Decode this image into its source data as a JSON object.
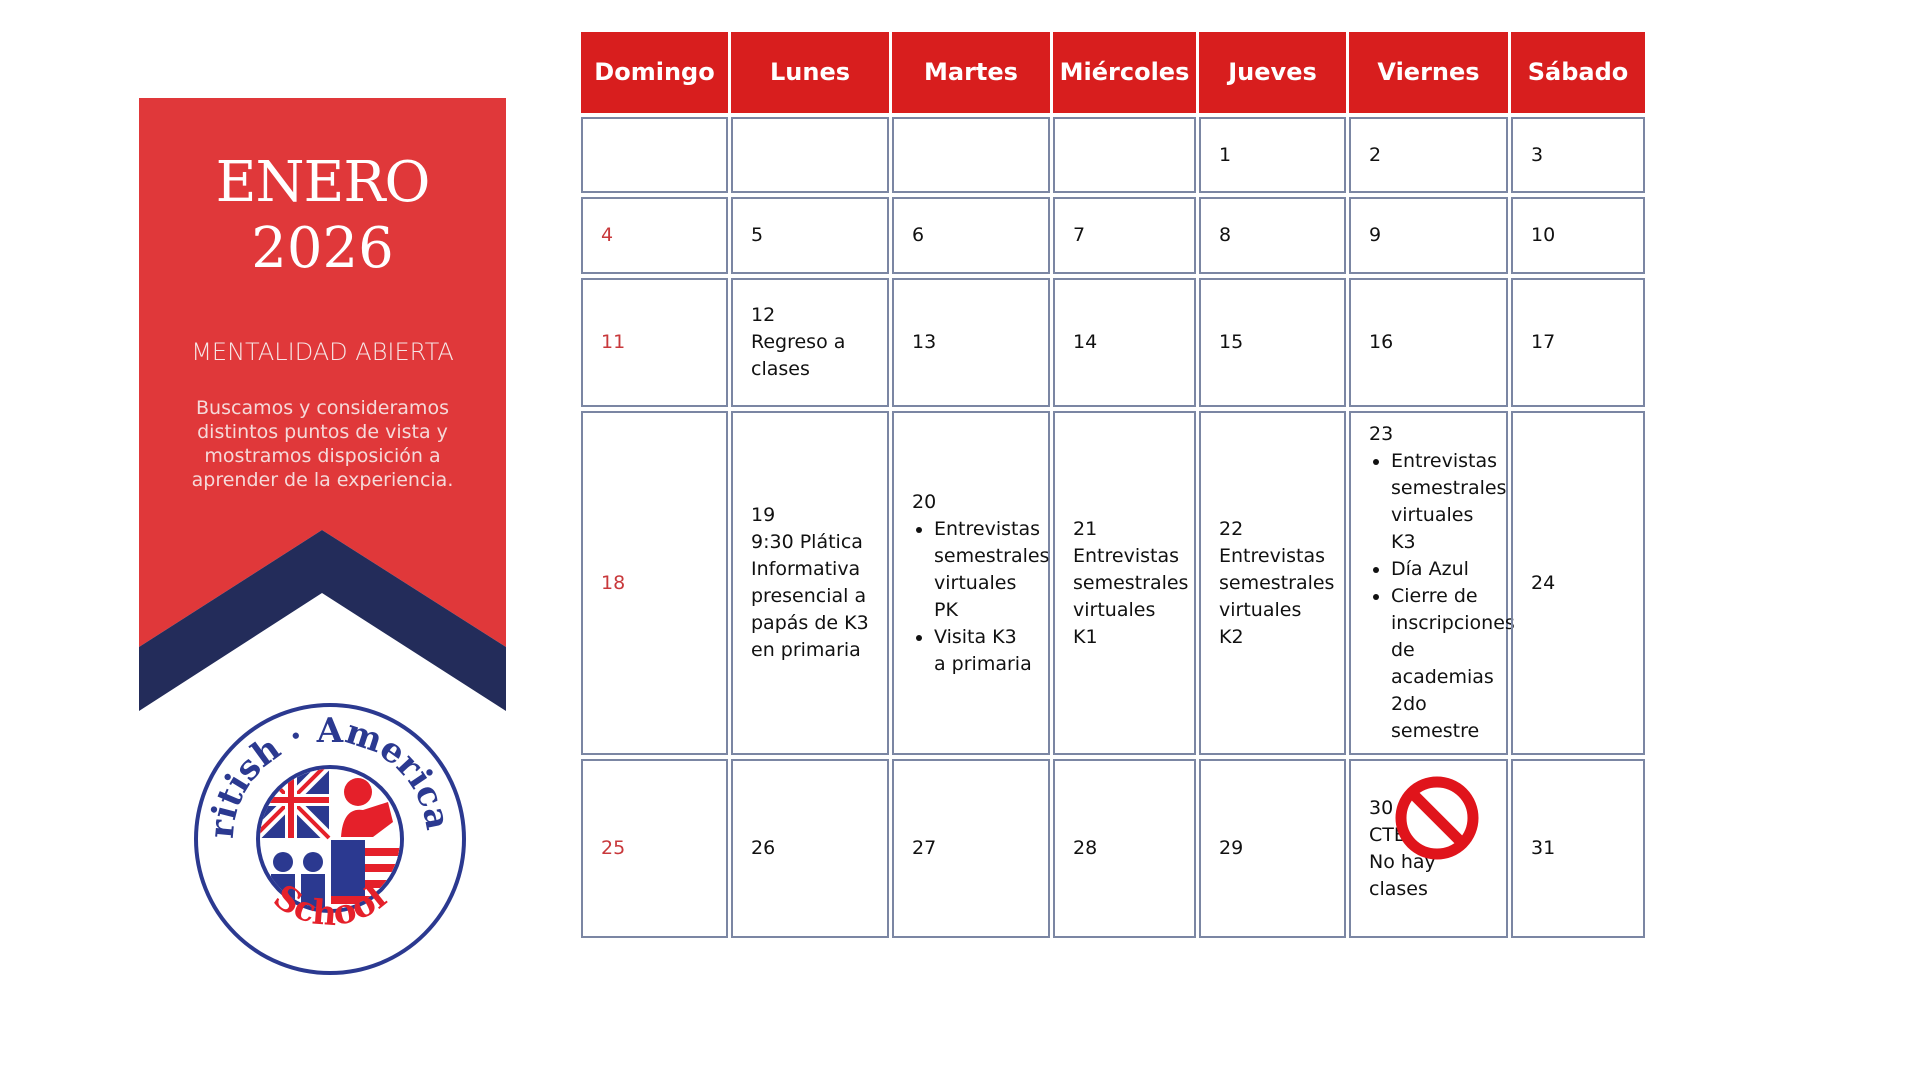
{
  "banner": {
    "month": "ENERO",
    "year": "2026",
    "trait": "MENTALIDAD ABIERTA",
    "description": "Buscamos y consideramos distintos puntos de vista y mostramos disposición a aprender de la experiencia.",
    "colors": {
      "red": "#e0383a",
      "navy": "#232c5a"
    }
  },
  "logo": {
    "text_top": "British · American.",
    "text_bottom": "School"
  },
  "calendar": {
    "header_color": "#d81e1e",
    "weekdays": [
      "Domingo",
      "Lunes",
      "Martes",
      "Miércoles",
      "Jueves",
      "Viernes",
      "Sábado"
    ],
    "weeks": [
      [
        {
          "day": ""
        },
        {
          "day": ""
        },
        {
          "day": ""
        },
        {
          "day": ""
        },
        {
          "day": "1"
        },
        {
          "day": "2"
        },
        {
          "day": "3"
        }
      ],
      [
        {
          "day": "4"
        },
        {
          "day": "5"
        },
        {
          "day": "6"
        },
        {
          "day": "7"
        },
        {
          "day": "8"
        },
        {
          "day": "9"
        },
        {
          "day": "10"
        }
      ],
      [
        {
          "day": "11"
        },
        {
          "day": "12",
          "text": [
            "Regreso a",
            "clases"
          ]
        },
        {
          "day": "13"
        },
        {
          "day": "14"
        },
        {
          "day": "15"
        },
        {
          "day": "16"
        },
        {
          "day": "17"
        }
      ],
      [
        {
          "day": "18"
        },
        {
          "day": "19",
          "text": [
            "9:30 Plática Informativa presencial a papás de K3 en primaria"
          ]
        },
        {
          "day": "20",
          "bullets": [
            "Entrevistas semestrales virtuales PK",
            "Visita K3 a primaria"
          ]
        },
        {
          "day": "21",
          "text": [
            "Entrevistas semestrales virtuales K1"
          ]
        },
        {
          "day": "22",
          "text": [
            "Entrevistas semestrales virtuales K2"
          ]
        },
        {
          "day": "23",
          "bullets": [
            "Entrevistas semestrales virtuales K3",
            "Día Azul",
            "Cierre de inscripciones de academias 2do semestre"
          ]
        },
        {
          "day": "24"
        }
      ],
      [
        {
          "day": "25"
        },
        {
          "day": "26"
        },
        {
          "day": "27"
        },
        {
          "day": "28"
        },
        {
          "day": "29"
        },
        {
          "day": "30",
          "text": [
            "CTE",
            "No hay clases"
          ],
          "icon": "no-entry-icon"
        },
        {
          "day": "31"
        }
      ]
    ]
  }
}
